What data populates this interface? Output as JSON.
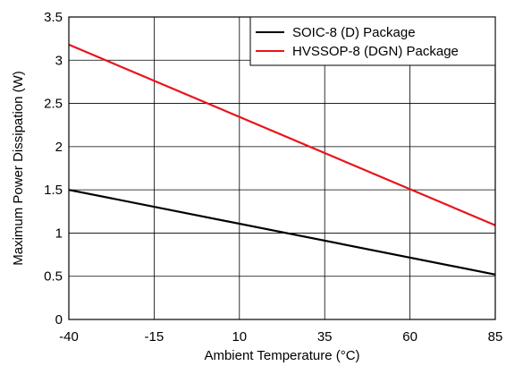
{
  "chart_data": {
    "type": "line",
    "title": "",
    "xlabel": "Ambient Temperature (°C)",
    "ylabel": "Maximum Power Dissipation (W)",
    "xlim": [
      -40,
      85
    ],
    "ylim": [
      0,
      3.5
    ],
    "x_ticks": [
      -40,
      -15,
      10,
      35,
      60,
      85
    ],
    "y_ticks": [
      0,
      0.5,
      1,
      1.5,
      2,
      2.5,
      3,
      3.5
    ],
    "x_tick_labels": [
      "-40",
      "-15",
      "10",
      "35",
      "60",
      "85"
    ],
    "y_tick_labels": [
      "0",
      "0.5",
      "1",
      "1.5",
      "2",
      "2.5",
      "3",
      "3.5"
    ],
    "grid": true,
    "legend_position": "top-right",
    "series": [
      {
        "name": "SOIC-8 (D) Package",
        "color": "#000000",
        "x": [
          -40,
          85
        ],
        "y": [
          1.5,
          0.52
        ]
      },
      {
        "name": "HVSSOP-8 (DGN) Package",
        "color": "#e8141c",
        "x": [
          -40,
          85
        ],
        "y": [
          3.18,
          1.09
        ]
      }
    ]
  }
}
